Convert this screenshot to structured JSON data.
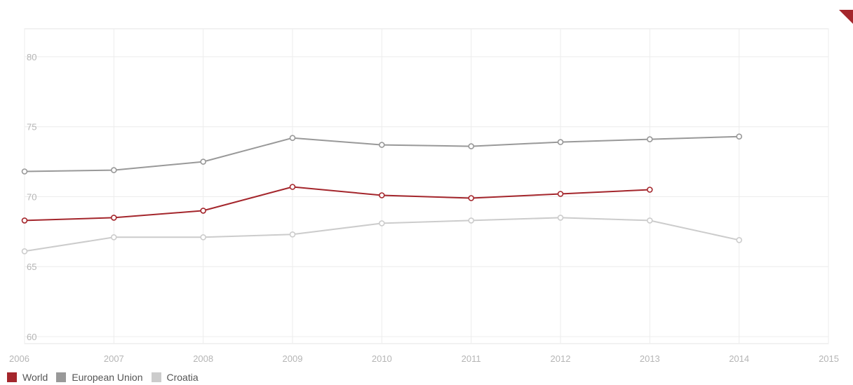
{
  "chart_data": {
    "type": "line",
    "x": [
      2006,
      2007,
      2008,
      2009,
      2010,
      2011,
      2012,
      2013,
      2014
    ],
    "series": [
      {
        "name": "World",
        "color": "#a4262c",
        "values": [
          68.3,
          68.5,
          69.0,
          70.7,
          70.1,
          69.9,
          70.2,
          70.5,
          null
        ]
      },
      {
        "name": "European Union",
        "color": "#999999",
        "values": [
          71.8,
          71.9,
          72.5,
          74.2,
          73.7,
          73.6,
          73.9,
          74.1,
          74.3
        ]
      },
      {
        "name": "Croatia",
        "color": "#cccccc",
        "values": [
          66.1,
          67.1,
          67.1,
          67.3,
          68.1,
          68.3,
          68.5,
          68.3,
          66.9
        ]
      }
    ],
    "xlim": [
      2006,
      2015
    ],
    "ylim": [
      59.5,
      82
    ],
    "x_ticks": [
      "2006",
      "2007",
      "2008",
      "2009",
      "2010",
      "2011",
      "2012",
      "2013",
      "2014",
      "2015"
    ],
    "y_ticks": [
      "60",
      "65",
      "70",
      "75",
      "80"
    ],
    "grid": true,
    "legend_position": "bottom-left"
  },
  "legend": {
    "items": [
      "World",
      "European Union",
      "Croatia"
    ],
    "colors": [
      "#a4262c",
      "#999999",
      "#cccccc"
    ]
  },
  "corner_badge": {
    "icon": "corner-ribbon-icon",
    "color": "#a4262c"
  }
}
